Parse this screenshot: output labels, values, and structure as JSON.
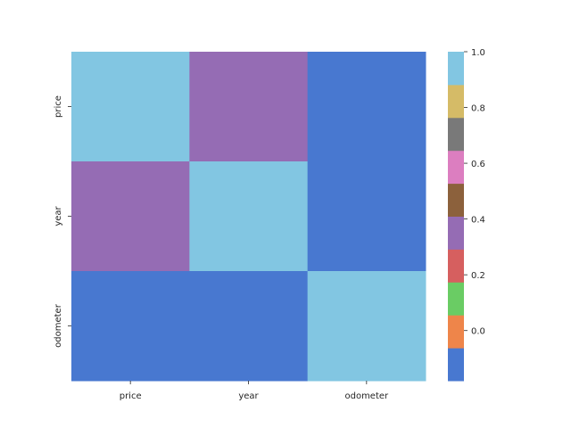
{
  "chart_data": {
    "type": "heatmap",
    "title": "",
    "xlabel": "",
    "ylabel": "",
    "x_categories": [
      "price",
      "year",
      "odometer"
    ],
    "y_categories": [
      "price",
      "year",
      "odometer"
    ],
    "values": [
      [
        1.0,
        0.37,
        -0.18
      ],
      [
        0.37,
        1.0,
        -0.18
      ],
      [
        -0.18,
        -0.18,
        1.0
      ]
    ],
    "colorbar": {
      "vmin": -0.18,
      "vmax": 1.0,
      "palette": [
        "#4878d0",
        "#ee854a",
        "#6acc64",
        "#d65f5f",
        "#956cb4",
        "#8c613c",
        "#dc7ec0",
        "#797979",
        "#d5bb67",
        "#82c6e2"
      ],
      "ticks": [
        1.0,
        0.8,
        0.6,
        0.4,
        0.2,
        0.0
      ],
      "tick_labels": [
        "1.0",
        "0.8",
        "0.6",
        "0.4",
        "0.2",
        "0.0"
      ]
    },
    "grid": false,
    "legend": "colorbar-right"
  }
}
